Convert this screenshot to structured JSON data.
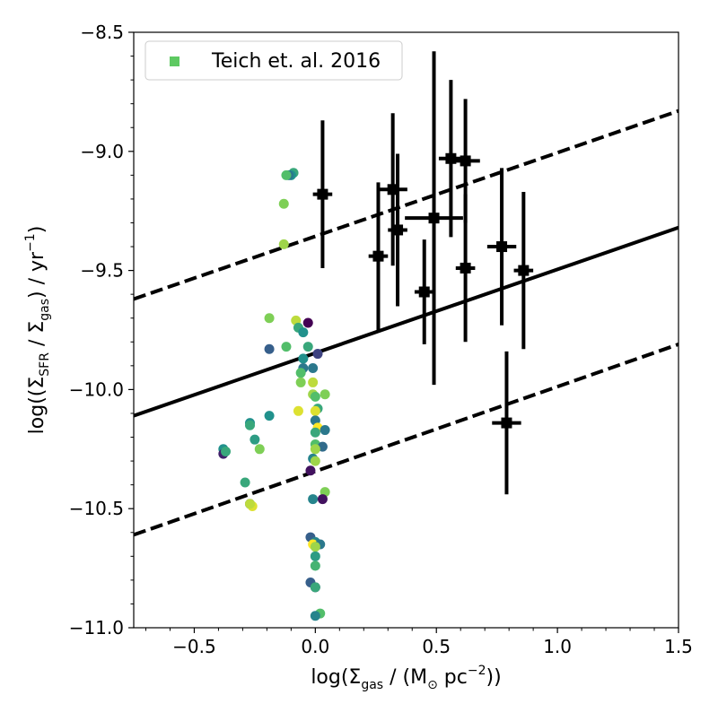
{
  "chart_data": {
    "type": "scatter",
    "xlabel": {
      "main": "log(Σ",
      "sub": "gas",
      "mid": " / (M",
      "sun": "⊙",
      "unit": " pc",
      "sup": "−2",
      "end": "))"
    },
    "ylabel": {
      "main": "log((Σ",
      "sub1": "SFR",
      "mid": " / Σ",
      "sub2": "gas",
      "unit": ") / yr",
      "sup": "−1",
      "end": ")"
    },
    "xlim": [
      -0.75,
      1.5
    ],
    "ylim": [
      -11.0,
      -8.5
    ],
    "x_ticks": [
      -0.5,
      0.0,
      0.5,
      1.0,
      1.5
    ],
    "x_tick_labels": [
      "−0.5",
      "0.0",
      "0.5",
      "1.0",
      "1.5"
    ],
    "y_ticks": [
      -11.0,
      -10.5,
      -10.0,
      -9.5,
      -9.0,
      -8.5
    ],
    "y_tick_labels": [
      "−11.0",
      "−10.5",
      "−10.0",
      "−9.5",
      "−9.0",
      "−8.5"
    ],
    "grid": false,
    "legend": {
      "placement": "top-left",
      "label": "Teich et. al. 2016",
      "marker_color": "#5ec962"
    },
    "fit_lines": [
      {
        "style": "solid",
        "points": [
          [
            -0.75,
            -10.11
          ],
          [
            1.5,
            -9.32
          ]
        ]
      },
      {
        "style": "dashed",
        "points": [
          [
            -0.75,
            -9.62
          ],
          [
            1.5,
            -8.83
          ]
        ]
      },
      {
        "style": "dashed",
        "points": [
          [
            -0.75,
            -10.61
          ],
          [
            1.5,
            -9.81
          ]
        ]
      }
    ],
    "series": [
      {
        "marker": "square",
        "color": "#000000",
        "points": [
          {
            "x": 0.03,
            "y": -9.18,
            "xerr": 0.04,
            "yerr": 0.31
          },
          {
            "x": 0.26,
            "y": -9.44,
            "xerr": 0.04,
            "yerr": 0.31
          },
          {
            "x": 0.32,
            "y": -9.16,
            "xerr": 0.06,
            "yerr": 0.32
          },
          {
            "x": 0.34,
            "y": -9.33,
            "xerr": 0.04,
            "yerr": 0.32
          },
          {
            "x": 0.45,
            "y": -9.59,
            "xerr": 0.04,
            "yerr": 0.22
          },
          {
            "x": 0.49,
            "y": -9.28,
            "xerr": 0.12,
            "yerr": 0.7
          },
          {
            "x": 0.56,
            "y": -9.03,
            "xerr": 0.05,
            "yerr": 0.33
          },
          {
            "x": 0.62,
            "y": -9.04,
            "xerr": 0.06,
            "yerr": 0.26
          },
          {
            "x": 0.62,
            "y": -9.49,
            "xerr": 0.04,
            "yerr": 0.31
          },
          {
            "x": 0.77,
            "y": -9.4,
            "xerr": 0.06,
            "yerr": 0.33
          },
          {
            "x": 0.79,
            "y": -10.14,
            "xerr": 0.06,
            "yerr": 0.3
          },
          {
            "x": 0.86,
            "y": -9.5,
            "xerr": 0.04,
            "yerr": 0.33
          }
        ]
      },
      {
        "name": "Teich et. al. 2016",
        "marker": "circle",
        "colormap": "viridis",
        "points": [
          {
            "x": -0.09,
            "y": -9.09,
            "c": 0.6
          },
          {
            "x": -0.1,
            "y": -9.1,
            "c": 0.5
          },
          {
            "x": -0.11,
            "y": -9.1,
            "c": 0.4
          },
          {
            "x": -0.12,
            "y": -9.1,
            "c": 0.7
          },
          {
            "x": -0.13,
            "y": -9.22,
            "c": 0.8
          },
          {
            "x": -0.13,
            "y": -9.39,
            "c": 0.85
          },
          {
            "x": -0.19,
            "y": -9.7,
            "c": 0.8
          },
          {
            "x": -0.08,
            "y": -9.71,
            "c": 0.9
          },
          {
            "x": -0.03,
            "y": -9.72,
            "c": 0.0
          },
          {
            "x": -0.07,
            "y": -9.74,
            "c": 0.6
          },
          {
            "x": -0.05,
            "y": -9.76,
            "c": 0.5
          },
          {
            "x": -0.12,
            "y": -9.82,
            "c": 0.7
          },
          {
            "x": -0.19,
            "y": -9.83,
            "c": 0.3
          },
          {
            "x": -0.03,
            "y": -9.82,
            "c": 0.6
          },
          {
            "x": 0.01,
            "y": -9.85,
            "c": 0.2
          },
          {
            "x": -0.05,
            "y": -9.87,
            "c": 0.5
          },
          {
            "x": -0.05,
            "y": -9.91,
            "c": 0.4
          },
          {
            "x": -0.06,
            "y": -9.93,
            "c": 0.7
          },
          {
            "x": -0.01,
            "y": -9.91,
            "c": 0.4
          },
          {
            "x": -0.06,
            "y": -9.97,
            "c": 0.8
          },
          {
            "x": -0.01,
            "y": -9.97,
            "c": 0.9
          },
          {
            "x": -0.01,
            "y": -10.02,
            "c": 0.85
          },
          {
            "x": 0.0,
            "y": -10.03,
            "c": 0.7
          },
          {
            "x": 0.04,
            "y": -10.02,
            "c": 0.8
          },
          {
            "x": 0.01,
            "y": -10.08,
            "c": 0.6
          },
          {
            "x": 0.0,
            "y": -10.09,
            "c": 0.95
          },
          {
            "x": -0.07,
            "y": -10.09,
            "c": 0.95
          },
          {
            "x": -0.19,
            "y": -10.11,
            "c": 0.5
          },
          {
            "x": 0.0,
            "y": -10.13,
            "c": 0.4
          },
          {
            "x": -0.27,
            "y": -10.14,
            "c": 0.5
          },
          {
            "x": -0.27,
            "y": -10.15,
            "c": 0.6
          },
          {
            "x": 0.01,
            "y": -10.16,
            "c": 1.0
          },
          {
            "x": 0.04,
            "y": -10.17,
            "c": 0.4
          },
          {
            "x": 0.0,
            "y": -10.18,
            "c": 0.6
          },
          {
            "x": -0.25,
            "y": -10.21,
            "c": 0.55
          },
          {
            "x": 0.0,
            "y": -10.23,
            "c": 0.7
          },
          {
            "x": -0.38,
            "y": -10.25,
            "c": 0.5
          },
          {
            "x": 0.03,
            "y": -10.24,
            "c": 0.35
          },
          {
            "x": -0.23,
            "y": -10.25,
            "c": 0.8
          },
          {
            "x": -0.38,
            "y": -10.27,
            "c": 0.1
          },
          {
            "x": -0.37,
            "y": -10.26,
            "c": 0.6
          },
          {
            "x": 0.0,
            "y": -10.25,
            "c": 0.85
          },
          {
            "x": -0.01,
            "y": -10.29,
            "c": 0.45
          },
          {
            "x": 0.0,
            "y": -10.3,
            "c": 0.85
          },
          {
            "x": -0.02,
            "y": -10.34,
            "c": 0.05
          },
          {
            "x": -0.29,
            "y": -10.39,
            "c": 0.6
          },
          {
            "x": 0.04,
            "y": -10.43,
            "c": 0.8
          },
          {
            "x": -0.01,
            "y": -10.46,
            "c": 0.45
          },
          {
            "x": 0.03,
            "y": -10.46,
            "c": 0.05
          },
          {
            "x": -0.27,
            "y": -10.48,
            "c": 0.25
          },
          {
            "x": -0.26,
            "y": -10.49,
            "c": 0.95
          },
          {
            "x": -0.27,
            "y": -10.48,
            "c": 0.9
          },
          {
            "x": -0.02,
            "y": -10.62,
            "c": 0.3
          },
          {
            "x": 0.0,
            "y": -10.64,
            "c": 0.45
          },
          {
            "x": -0.01,
            "y": -10.65,
            "c": 1.0
          },
          {
            "x": 0.02,
            "y": -10.65,
            "c": 0.4
          },
          {
            "x": 0.0,
            "y": -10.66,
            "c": 0.85
          },
          {
            "x": 0.0,
            "y": -10.7,
            "c": 0.55
          },
          {
            "x": 0.0,
            "y": -10.74,
            "c": 0.65
          },
          {
            "x": -0.02,
            "y": -10.81,
            "c": 0.3
          },
          {
            "x": 0.0,
            "y": -10.83,
            "c": 0.15
          },
          {
            "x": 0.0,
            "y": -10.83,
            "c": 0.6
          },
          {
            "x": 0.02,
            "y": -10.94,
            "c": 0.7
          },
          {
            "x": 0.0,
            "y": -10.95,
            "c": 0.45
          }
        ]
      }
    ]
  }
}
